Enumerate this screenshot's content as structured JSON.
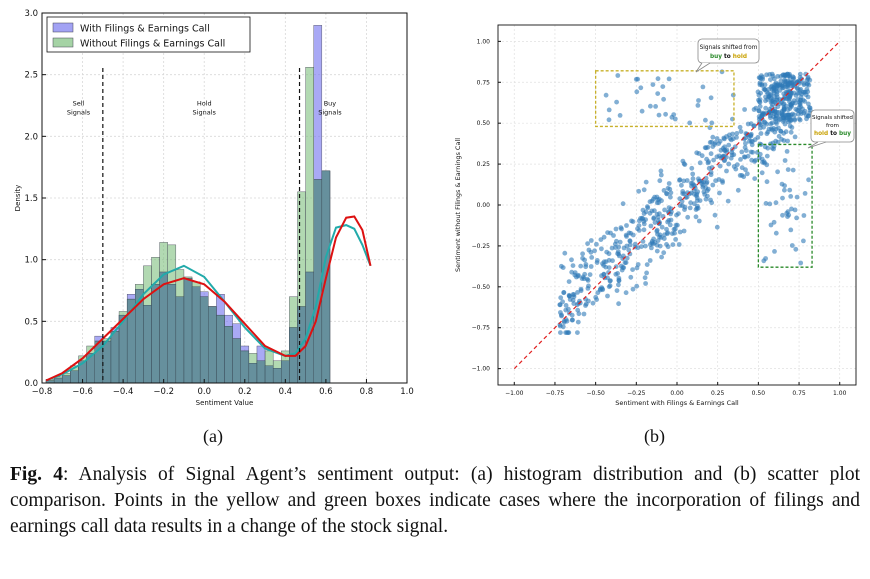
{
  "chart_data": [
    {
      "type": "histogram",
      "panel": "(a)",
      "xlabel": "Sentiment Value",
      "ylabel": "Density",
      "xlim": [
        -0.8,
        1.0
      ],
      "ylim": [
        0.0,
        3.0
      ],
      "xticks": [
        "−0.8",
        "−0.6",
        "−0.4",
        "−0.2",
        "0.0",
        "0.2",
        "0.4",
        "0.6",
        "0.8",
        "1.0"
      ],
      "yticks": [
        "0.0",
        "0.5",
        "1.0",
        "1.5",
        "2.0",
        "2.5",
        "3.0"
      ],
      "bin_start": -0.78,
      "bin_width": 0.04,
      "series": [
        {
          "name": "With Filings & Earnings Call",
          "color": "#7b7bf0",
          "values": [
            0.02,
            0.04,
            0.06,
            0.1,
            0.18,
            0.24,
            0.38,
            0.34,
            0.45,
            0.55,
            0.72,
            0.76,
            0.63,
            0.8,
            0.9,
            0.8,
            0.7,
            0.85,
            0.78,
            0.74,
            0.62,
            0.72,
            0.55,
            0.48,
            0.3,
            0.16,
            0.3,
            0.14,
            0.12,
            0.18,
            0.45,
            0.62,
            0.9,
            2.9,
            1.72
          ]
        },
        {
          "name": "Without Filings & Earnings Call",
          "color": "#7fc07f",
          "values": [
            0.03,
            0.05,
            0.08,
            0.14,
            0.22,
            0.3,
            0.34,
            0.36,
            0.42,
            0.58,
            0.68,
            0.8,
            0.95,
            1.02,
            1.14,
            1.12,
            0.92,
            0.86,
            0.82,
            0.7,
            0.62,
            0.55,
            0.46,
            0.36,
            0.26,
            0.24,
            0.18,
            0.26,
            0.18,
            0.26,
            0.7,
            1.55,
            2.56,
            1.65,
            1.72
          ]
        }
      ],
      "kde_with": {
        "color": "#dd1111",
        "x": [
          -0.78,
          -0.7,
          -0.6,
          -0.5,
          -0.4,
          -0.3,
          -0.2,
          -0.1,
          0.0,
          0.1,
          0.2,
          0.3,
          0.4,
          0.45,
          0.5,
          0.55,
          0.6,
          0.65,
          0.7,
          0.74,
          0.78,
          0.82
        ],
        "y": [
          0.02,
          0.08,
          0.2,
          0.36,
          0.52,
          0.68,
          0.8,
          0.85,
          0.8,
          0.66,
          0.48,
          0.3,
          0.22,
          0.22,
          0.3,
          0.5,
          0.85,
          1.18,
          1.34,
          1.35,
          1.24,
          0.95
        ]
      },
      "kde_without": {
        "color": "#22aaaa",
        "x": [
          -0.78,
          -0.7,
          -0.6,
          -0.5,
          -0.4,
          -0.3,
          -0.2,
          -0.1,
          0.0,
          0.1,
          0.2,
          0.3,
          0.4,
          0.45,
          0.5,
          0.55,
          0.6,
          0.65,
          0.7,
          0.74,
          0.78,
          0.82
        ],
        "y": [
          0.02,
          0.07,
          0.16,
          0.3,
          0.5,
          0.72,
          0.88,
          0.95,
          0.86,
          0.66,
          0.45,
          0.28,
          0.22,
          0.24,
          0.36,
          0.62,
          1.02,
          1.26,
          1.28,
          1.25,
          1.12,
          0.95
        ]
      },
      "vlines": [
        -0.5,
        0.47
      ],
      "annotations": [
        {
          "text": [
            "Sell",
            "Signals"
          ],
          "x": -0.62,
          "y": 2.25
        },
        {
          "text": [
            "Hold",
            "Signals"
          ],
          "x": 0.0,
          "y": 2.25
        },
        {
          "text": [
            "Buy",
            "Signals"
          ],
          "x": 0.62,
          "y": 2.25
        }
      ]
    },
    {
      "type": "scatter",
      "panel": "(b)",
      "xlabel": "Sentiment with Filings & Earnings Call",
      "ylabel": "Sentiment without Filings & Earnings Call",
      "xlim": [
        -1.1,
        1.1
      ],
      "ylim": [
        -1.1,
        1.1
      ],
      "xticks": [
        "−1.00",
        "−0.75",
        "−0.50",
        "−0.25",
        "0.00",
        "0.25",
        "0.50",
        "0.75",
        "1.00"
      ],
      "yticks": [
        "−1.00",
        "−0.75",
        "−0.50",
        "−0.25",
        "0.00",
        "0.25",
        "0.50",
        "0.75",
        "1.00"
      ],
      "point_color": "#2e7ab8",
      "diagonal": {
        "x": [
          -1.0,
          1.0
        ],
        "y": [
          -1.0,
          1.0
        ],
        "color": "#e02020",
        "style": "dashed"
      },
      "boxes": [
        {
          "name": "yellow-box",
          "color": "#c8b02a",
          "x": [
            -0.5,
            0.35
          ],
          "y": [
            0.48,
            0.82
          ]
        },
        {
          "name": "green-box",
          "color": "#2a8a2a",
          "x": [
            0.5,
            0.83
          ],
          "y": [
            -0.38,
            0.37
          ]
        }
      ],
      "callouts": [
        {
          "text": "Signals shifted from",
          "line2": [
            "buy",
            " to ",
            "hold"
          ],
          "x": 0.33,
          "y": 0.94
        },
        {
          "text": "Signals shifted",
          "line2a": "from",
          "line2": [
            "hold",
            " to ",
            "buy"
          ],
          "x": 0.97,
          "y": 0.5
        }
      ],
      "sample_points": {
        "seed": 7,
        "count": 900
      }
    }
  ],
  "subcaptions": {
    "a": "(a)",
    "b": "(b)"
  },
  "caption": {
    "label": "Fig. 4",
    "text": ": Analysis of Signal Agent’s sentiment output: (a) histogram distribution and (b) scatter plot comparison. Points in the yellow and green boxes indicate cases where the incorporation of filings and earnings call data results in a change of the stock signal."
  }
}
